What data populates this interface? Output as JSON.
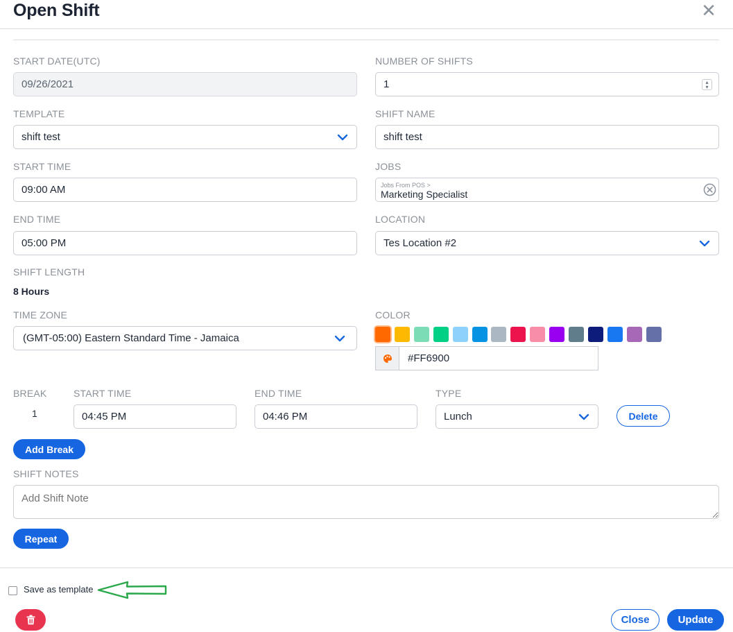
{
  "dialog": {
    "title": "Open Shift"
  },
  "form": {
    "start_date": {
      "label": "START DATE(UTC)",
      "value": "09/26/2021"
    },
    "number_of_shifts": {
      "label": "NUMBER OF SHIFTS",
      "value": "1"
    },
    "template": {
      "label": "TEMPLATE",
      "value": "shift test"
    },
    "shift_name": {
      "label": "SHIFT NAME",
      "value": "shift test"
    },
    "start_time": {
      "label": "START TIME",
      "value": "09:00 AM"
    },
    "jobs": {
      "label": "JOBS",
      "group": "Jobs From POS >",
      "value": "Marketing Specialist"
    },
    "end_time": {
      "label": "END TIME",
      "value": "05:00 PM"
    },
    "location": {
      "label": "LOCATION",
      "value": "Tes Location #2"
    },
    "shift_length": {
      "label": "SHIFT LENGTH",
      "value": "8 Hours"
    },
    "time_zone": {
      "label": "TIME ZONE",
      "value": "(GMT-05:00) Eastern Standard Time - Jamaica"
    },
    "color": {
      "label": "COLOR",
      "hex": "#FF6900",
      "swatches": [
        "#ff6900",
        "#fcb900",
        "#7bdcb5",
        "#00d084",
        "#8ed1fc",
        "#0693e3",
        "#abb8c3",
        "#eb144c",
        "#f78da7",
        "#9900ef",
        "#607d8b",
        "#0d1b7a",
        "#1778f2",
        "#a868b8",
        "#6670a8"
      ]
    }
  },
  "breaks": {
    "headers": {
      "break": "BREAK",
      "start_time": "START TIME",
      "end_time": "END TIME",
      "type": "TYPE"
    },
    "rows": [
      {
        "index": "1",
        "start": "04:45 PM",
        "end": "04:46 PM",
        "type": "Lunch",
        "delete_label": "Delete"
      }
    ],
    "add_label": "Add Break"
  },
  "notes": {
    "label": "SHIFT NOTES",
    "placeholder": "Add Shift Note"
  },
  "repeat_label": "Repeat",
  "footer": {
    "save_template_label": "Save as template",
    "close_label": "Close",
    "update_label": "Update"
  },
  "colors": {
    "accent": "#1766e1",
    "danger": "#e8344e",
    "annotation_arrow": "#2aa84a"
  }
}
